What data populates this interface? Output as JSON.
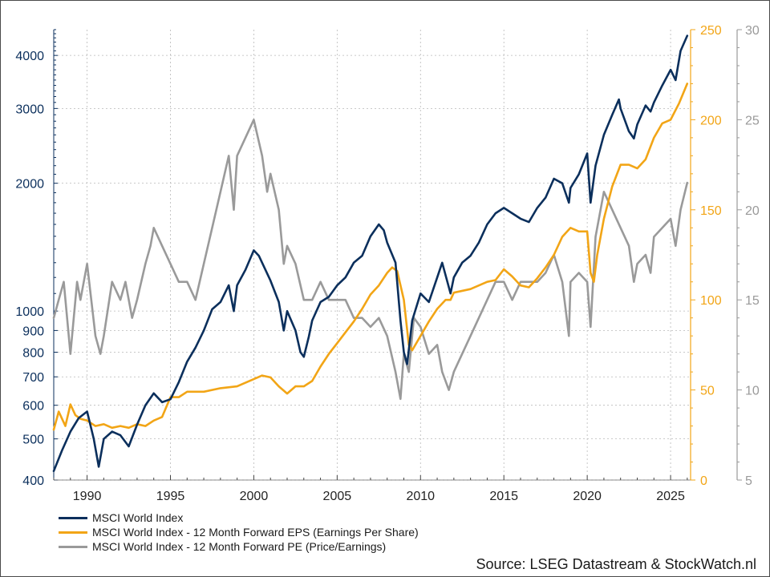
{
  "colors": {
    "index": "#0b2f5c",
    "eps": "#f2a516",
    "pe": "#9a9a9a",
    "axis_left": "#0b2f5c",
    "axis_eps": "#f2a516",
    "axis_pe": "#9a9a9a",
    "grid": "#b8b8b8"
  },
  "legend": [
    {
      "label": "MSCI World Index",
      "color": "#0b2f5c"
    },
    {
      "label": "MSCI World Index - 12 Month Forward EPS (Earnings Per Share)",
      "color": "#f2a516"
    },
    {
      "label": "MSCI World Index - 12 Month Forward PE (Price/Earnings)",
      "color": "#9a9a9a"
    }
  ],
  "source": "Source: LSEG Datastream & StockWatch.nl",
  "chart_data": {
    "type": "line",
    "grid": true,
    "legend_position": "bottom-left",
    "xlim": [
      1988,
      2026.2
    ],
    "x_ticks": [
      1990,
      1995,
      2000,
      2005,
      2010,
      2015,
      2020,
      2025
    ],
    "axes": {
      "left": {
        "scale": "log",
        "ylim": [
          400,
          4600
        ],
        "ticks": [
          400,
          500,
          600,
          700,
          800,
          900,
          1000,
          2000,
          3000,
          4000
        ]
      },
      "right_eps": {
        "scale": "linear",
        "ylim": [
          0,
          250
        ],
        "ticks": [
          0,
          50,
          100,
          150,
          200,
          250
        ]
      },
      "right_pe": {
        "scale": "linear",
        "ylim": [
          5,
          30
        ],
        "ticks": [
          5,
          10,
          15,
          20,
          25,
          30
        ]
      }
    },
    "series": [
      {
        "name": "MSCI World Index",
        "axis": "left",
        "x": [
          1988.0,
          1988.5,
          1989.0,
          1989.5,
          1990.0,
          1990.4,
          1990.7,
          1991.0,
          1991.5,
          1992.0,
          1992.5,
          1993.0,
          1993.5,
          1994.0,
          1994.5,
          1995.0,
          1995.5,
          1996.0,
          1996.5,
          1997.0,
          1997.5,
          1998.0,
          1998.5,
          1998.8,
          1999.0,
          1999.5,
          2000.0,
          2000.3,
          2000.7,
          2001.0,
          2001.5,
          2001.8,
          2002.0,
          2002.5,
          2002.8,
          2003.0,
          2003.3,
          2003.5,
          2004.0,
          2004.5,
          2005.0,
          2005.5,
          2006.0,
          2006.5,
          2007.0,
          2007.5,
          2007.8,
          2008.0,
          2008.5,
          2008.8,
          2009.0,
          2009.2,
          2009.5,
          2010.0,
          2010.5,
          2011.0,
          2011.3,
          2011.8,
          2012.0,
          2012.5,
          2013.0,
          2013.5,
          2014.0,
          2014.5,
          2015.0,
          2015.5,
          2016.0,
          2016.5,
          2017.0,
          2017.5,
          2018.0,
          2018.5,
          2018.9,
          2019.0,
          2019.5,
          2020.0,
          2020.2,
          2020.5,
          2021.0,
          2021.5,
          2021.9,
          2022.0,
          2022.5,
          2022.8,
          2023.0,
          2023.5,
          2023.8,
          2024.0,
          2024.5,
          2025.0,
          2025.3,
          2025.6,
          2026.0
        ],
        "y": [
          420,
          470,
          520,
          560,
          580,
          500,
          430,
          500,
          520,
          510,
          480,
          540,
          600,
          640,
          610,
          620,
          680,
          760,
          820,
          900,
          1010,
          1050,
          1150,
          1000,
          1150,
          1250,
          1390,
          1350,
          1250,
          1180,
          1050,
          900,
          1000,
          900,
          800,
          780,
          870,
          950,
          1050,
          1080,
          1150,
          1200,
          1300,
          1350,
          1500,
          1600,
          1550,
          1450,
          1300,
          950,
          800,
          750,
          950,
          1100,
          1050,
          1200,
          1300,
          1100,
          1200,
          1300,
          1350,
          1450,
          1600,
          1700,
          1750,
          1700,
          1650,
          1620,
          1750,
          1850,
          2050,
          2000,
          1800,
          1950,
          2100,
          2350,
          1800,
          2200,
          2600,
          2900,
          3150,
          3000,
          2650,
          2550,
          2750,
          3050,
          2950,
          3100,
          3400,
          3700,
          3500,
          4100,
          4450
        ]
      },
      {
        "name": "MSCI World Index - 12 Month Forward EPS (Earnings Per Share)",
        "axis": "right_eps",
        "x": [
          1988.0,
          1988.3,
          1988.7,
          1989.0,
          1989.3,
          1989.6,
          1990.0,
          1990.5,
          1991.0,
          1991.5,
          1992.0,
          1992.5,
          1993.0,
          1993.5,
          1994.0,
          1994.5,
          1995.0,
          1995.5,
          1996.0,
          1997.0,
          1998.0,
          1999.0,
          2000.0,
          2000.5,
          2001.0,
          2001.5,
          2002.0,
          2002.5,
          2003.0,
          2003.5,
          2004.0,
          2004.5,
          2005.0,
          2005.5,
          2006.0,
          2006.5,
          2007.0,
          2007.5,
          2008.0,
          2008.3,
          2008.6,
          2009.0,
          2009.3,
          2009.5,
          2010.0,
          2010.5,
          2011.0,
          2011.5,
          2011.8,
          2012.0,
          2013.0,
          2014.0,
          2014.5,
          2015.0,
          2015.5,
          2016.0,
          2016.5,
          2017.0,
          2017.5,
          2018.0,
          2018.5,
          2019.0,
          2019.5,
          2020.0,
          2020.2,
          2020.4,
          2020.6,
          2021.0,
          2021.5,
          2022.0,
          2022.5,
          2023.0,
          2023.5,
          2024.0,
          2024.5,
          2025.0,
          2025.5,
          2026.0
        ],
        "y": [
          28,
          38,
          30,
          42,
          36,
          34,
          33,
          30,
          31,
          29,
          30,
          29,
          31,
          30,
          33,
          35,
          46,
          46,
          49,
          49,
          51,
          52,
          56,
          58,
          57,
          52,
          48,
          52,
          52,
          55,
          63,
          70,
          76,
          82,
          88,
          95,
          103,
          108,
          115,
          118,
          116,
          100,
          75,
          72,
          80,
          88,
          95,
          100,
          100,
          104,
          106,
          110,
          111,
          117,
          113,
          108,
          107,
          112,
          118,
          125,
          135,
          140,
          138,
          138,
          115,
          110,
          125,
          145,
          163,
          175,
          175,
          173,
          178,
          190,
          198,
          200,
          209,
          220
        ]
      },
      {
        "name": "MSCI World Index - 12 Month Forward PE (Price/Earnings)",
        "axis": "right_pe",
        "x": [
          1988.0,
          1988.3,
          1988.6,
          1989.0,
          1989.4,
          1989.6,
          1990.0,
          1990.5,
          1990.8,
          1991.0,
          1991.5,
          1992.0,
          1992.3,
          1992.7,
          1993.0,
          1993.5,
          1993.8,
          1994.0,
          1994.5,
          1995.0,
          1995.5,
          1996.0,
          1996.5,
          1997.0,
          1997.5,
          1998.0,
          1998.5,
          1998.8,
          1999.0,
          1999.5,
          2000.0,
          2000.5,
          2000.8,
          2001.0,
          2001.5,
          2001.8,
          2002.0,
          2002.5,
          2003.0,
          2003.5,
          2004.0,
          2004.5,
          2005.0,
          2005.5,
          2006.0,
          2006.5,
          2007.0,
          2007.5,
          2008.0,
          2008.5,
          2008.8,
          2009.0,
          2009.3,
          2009.6,
          2010.0,
          2010.5,
          2011.0,
          2011.3,
          2011.7,
          2012.0,
          2012.5,
          2013.0,
          2013.5,
          2014.0,
          2014.5,
          2015.0,
          2015.5,
          2016.0,
          2016.5,
          2017.0,
          2017.5,
          2018.0,
          2018.5,
          2018.9,
          2019.0,
          2019.5,
          2020.0,
          2020.2,
          2020.5,
          2021.0,
          2021.5,
          2022.0,
          2022.5,
          2022.8,
          2023.0,
          2023.5,
          2023.8,
          2024.0,
          2024.5,
          2025.0,
          2025.3,
          2025.6,
          2026.0
        ],
        "y": [
          14,
          15,
          16,
          12,
          16,
          15,
          17,
          13,
          12,
          13,
          16,
          15,
          16,
          14,
          15,
          17,
          18,
          19,
          18,
          17,
          16,
          16,
          15,
          17,
          19,
          21,
          23,
          20,
          23,
          24,
          25,
          23,
          21,
          22,
          20,
          17,
          18,
          17,
          15,
          15,
          16,
          15,
          15,
          15,
          14,
          14,
          13.5,
          14,
          13,
          11,
          9.5,
          12,
          11,
          14,
          13.5,
          12,
          12.5,
          11,
          10,
          11,
          12,
          13,
          14,
          15,
          16,
          16,
          15,
          16,
          16,
          16,
          16.5,
          17.5,
          16,
          13,
          16,
          16.5,
          16,
          13.5,
          18.5,
          21,
          20,
          19,
          18,
          16,
          17,
          17.5,
          16.5,
          18.5,
          19,
          19.5,
          18,
          20,
          21.5
        ]
      }
    ]
  }
}
